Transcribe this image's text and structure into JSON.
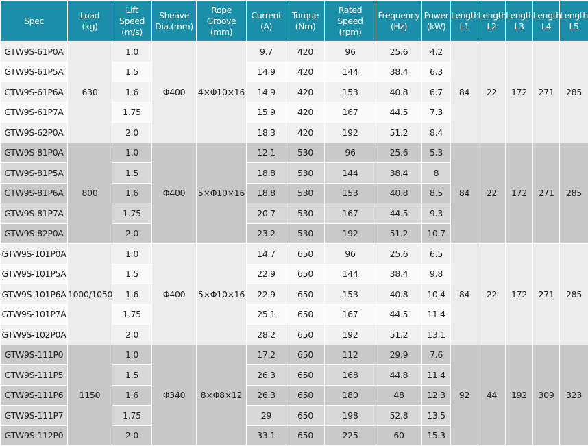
{
  "header": {
    "columns": [
      [
        "Spec"
      ],
      [
        "Load",
        "(kg)"
      ],
      [
        "Lift Speed",
        "(m/s)"
      ],
      [
        "Sheave",
        "Dia.(mm)"
      ],
      [
        "Rope Groove",
        "(mm)"
      ],
      [
        "Current",
        "(A)"
      ],
      [
        "Torque",
        "(Nm)"
      ],
      [
        "Rated Speed",
        "(rpm)"
      ],
      [
        "Frequency",
        "(Hz)"
      ],
      [
        "Power",
        "(kW)"
      ],
      [
        "Length",
        "L1"
      ],
      [
        "Length",
        "L2"
      ],
      [
        "Length",
        "L3"
      ],
      [
        "Length",
        "L4"
      ],
      [
        "Length",
        "L5"
      ]
    ]
  },
  "groups": [
    {
      "load": "630",
      "sheave": "Φ400",
      "rope": "4×Φ10×16",
      "lengths": [
        "84",
        "22",
        "172",
        "271",
        "285"
      ],
      "rows": [
        [
          "GTW9S-61P0A",
          "1.0",
          "9.7",
          "420",
          "96",
          "25.6",
          "4.2"
        ],
        [
          "GTW9S-61P5A",
          "1.5",
          "14.9",
          "420",
          "144",
          "38.4",
          "6.3"
        ],
        [
          "GTW9S-61P6A",
          "1.6",
          "14.9",
          "420",
          "153",
          "40.8",
          "6.7"
        ],
        [
          "GTW9S-61P7A",
          "1.75",
          "15.9",
          "420",
          "167",
          "44.5",
          "7.3"
        ],
        [
          "GTW9S-62P0A",
          "2.0",
          "18.3",
          "420",
          "192",
          "51.2",
          "8.4"
        ]
      ]
    },
    {
      "load": "800",
      "sheave": "Φ400",
      "rope": "5×Φ10×16",
      "lengths": [
        "84",
        "22",
        "172",
        "271",
        "285"
      ],
      "rows": [
        [
          "GTW9S-81P0A",
          "1.0",
          "12.1",
          "530",
          "96",
          "25.6",
          "5.3"
        ],
        [
          "GTW9S-81P5A",
          "1.5",
          "18.8",
          "530",
          "144",
          "38.4",
          "8"
        ],
        [
          "GTW9S-81P6A",
          "1.6",
          "18.8",
          "530",
          "153",
          "40.8",
          "8.5"
        ],
        [
          "GTW9S-81P7A",
          "1.75",
          "20.7",
          "530",
          "167",
          "44.5",
          "9.3"
        ],
        [
          "GTW9S-82P0A",
          "2.0",
          "23.2",
          "530",
          "192",
          "51.2",
          "10.7"
        ]
      ]
    },
    {
      "load": "1000/1050",
      "sheave": "Φ400",
      "rope": "5×Φ10×16",
      "lengths": [
        "84",
        "22",
        "172",
        "271",
        "285"
      ],
      "rows": [
        [
          "GTW9S-101P0A",
          "1.0",
          "14.7",
          "650",
          "96",
          "25.6",
          "6.5"
        ],
        [
          "GTW9S-101P5A",
          "1.5",
          "22.9",
          "650",
          "144",
          "38.4",
          "9.8"
        ],
        [
          "GTW9S-101P6A",
          "1.6",
          "22.9",
          "650",
          "153",
          "40.8",
          "10.4"
        ],
        [
          "GTW9S-101P7A",
          "1.75",
          "25.1",
          "650",
          "167",
          "44.5",
          "11.4"
        ],
        [
          "GTW9S-102P0A",
          "2.0",
          "28.2",
          "650",
          "192",
          "51.2",
          "13.1"
        ]
      ]
    },
    {
      "load": "1150",
      "sheave": "Φ340",
      "rope": "8×Φ8×12",
      "lengths": [
        "92",
        "44",
        "192",
        "309",
        "323"
      ],
      "rows": [
        [
          "GTW9S-111P0",
          "1.0",
          "17.2",
          "650",
          "112",
          "29.9",
          "7.6"
        ],
        [
          "GTW9S-111P5",
          "1.5",
          "26.3",
          "650",
          "168",
          "44.8",
          "11.4"
        ],
        [
          "GTW9S-111P6",
          "1.6",
          "26.3",
          "650",
          "180",
          "48",
          "12.3"
        ],
        [
          "GTW9S-111P7",
          "1.75",
          "29",
          "650",
          "198",
          "52.8",
          "13.5"
        ],
        [
          "GTW9S-112P0",
          "2.0",
          "33.1",
          "650",
          "225",
          "60",
          "15.3"
        ]
      ]
    }
  ]
}
